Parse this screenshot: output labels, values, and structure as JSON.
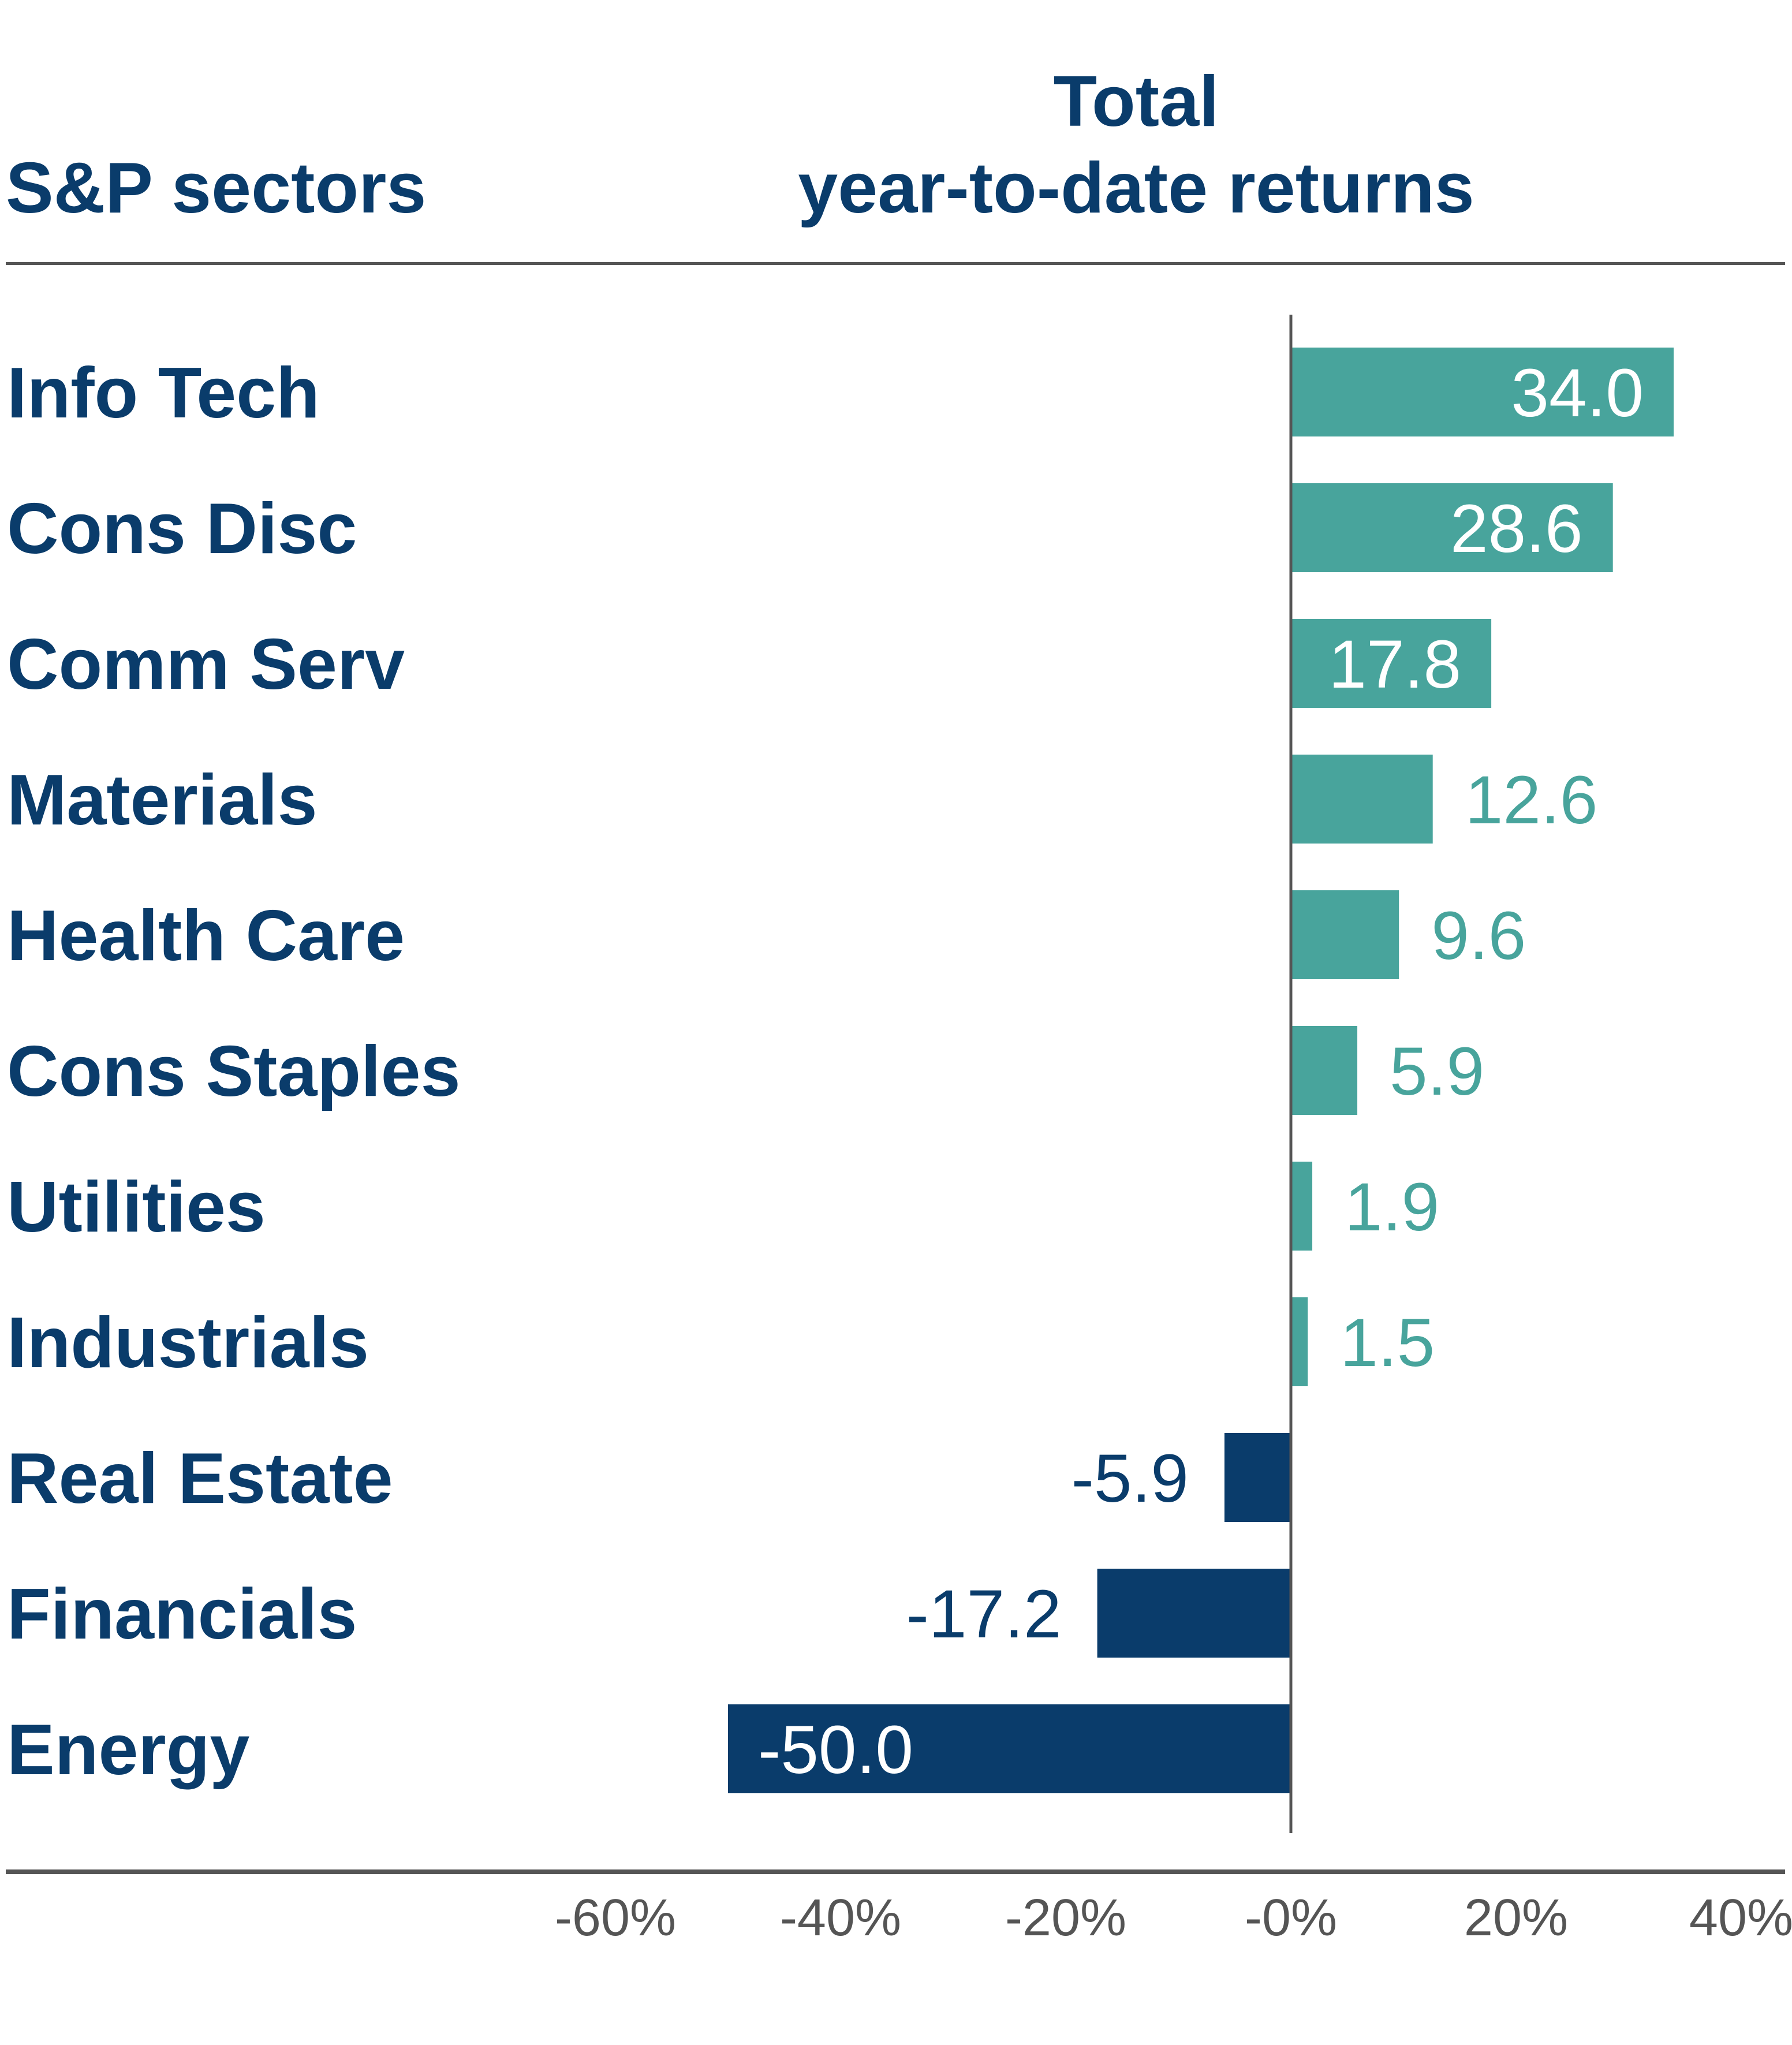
{
  "chart_data": {
    "type": "bar",
    "orientation": "horizontal",
    "header": {
      "left": "S&P sectors",
      "right_line1": "Total",
      "right_line2": "year-to-date returns"
    },
    "categories": [
      "Info Tech",
      "Cons Disc",
      "Comm Serv",
      "Materials",
      "Health Care",
      "Cons Staples",
      "Utilities",
      "Industrials",
      "Real Estate",
      "Financials",
      "Energy"
    ],
    "values": [
      34.0,
      28.6,
      17.8,
      12.6,
      9.6,
      5.9,
      1.9,
      1.5,
      -5.9,
      -17.2,
      -50.0
    ],
    "value_labels": [
      "34.0",
      "28.6",
      "17.8",
      "12.6",
      "9.6",
      "5.9",
      "1.9",
      "1.5",
      "-5.9",
      "-17.2",
      "-50.0"
    ],
    "x_ticks": [
      {
        "value": -60,
        "label": "-60%"
      },
      {
        "value": -40,
        "label": "-40%"
      },
      {
        "value": -20,
        "label": "-20%"
      },
      {
        "value": 0,
        "label": "-0%"
      },
      {
        "value": 20,
        "label": "20%"
      },
      {
        "value": 40,
        "label": "40%"
      }
    ],
    "xlim": [
      -60,
      40
    ],
    "colors": {
      "positive": "#48a49c",
      "negative": "#0a3c6b",
      "label_inside": "#ffffff",
      "text": "#0a3c6b",
      "rule": "#555555"
    }
  }
}
